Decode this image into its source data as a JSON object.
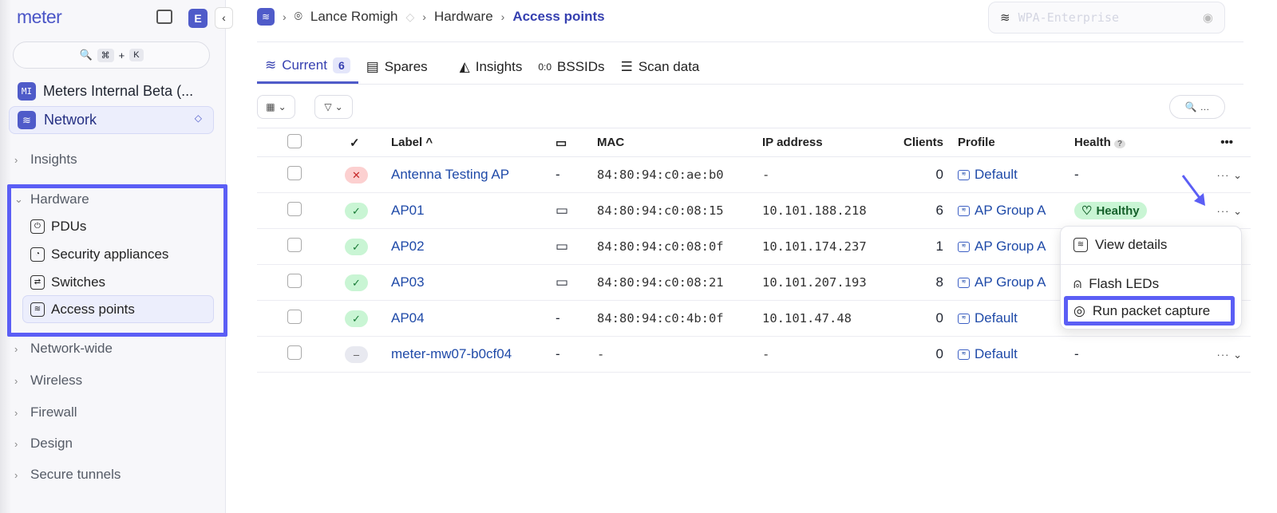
{
  "app": {
    "logo": "meter",
    "avatar": "E",
    "collapse": "‹"
  },
  "search": {
    "kbd_cmd": "⌘",
    "plus": "+",
    "kbd_k": "K"
  },
  "org": {
    "initials": "MI",
    "name": "Meters Internal Beta (..."
  },
  "network_selector": {
    "label": "Network"
  },
  "nav": {
    "sections": [
      "Insights",
      "Hardware",
      "Network-wide",
      "Wireless",
      "Firewall",
      "Design",
      "Secure tunnels"
    ],
    "hardware_items": [
      "PDUs",
      "Security appliances",
      "Switches",
      "Access points"
    ]
  },
  "breadcrumb": [
    "Lance Romigh",
    "Hardware",
    "Access points"
  ],
  "ssid": {
    "value": "WPA-Enterprise"
  },
  "tabs": [
    {
      "label": "Current",
      "count": "6"
    },
    {
      "label": "Spares"
    },
    {
      "label": "Insights"
    },
    {
      "label": "BSSIDs"
    },
    {
      "label": "Scan data"
    }
  ],
  "table": {
    "headers": {
      "label": "Label ^",
      "mac": "MAC",
      "ip": "IP address",
      "clients": "Clients",
      "profile": "Profile",
      "health": "Health",
      "help": "?",
      "more": "•••"
    },
    "rows": [
      {
        "status": "error",
        "status_glyph": "✕",
        "label": "Antenna Testing AP",
        "note": "-",
        "mac": "84:80:94:c0:ae:b0",
        "ip": "-",
        "clients": "0",
        "profile": "Default",
        "health": "-"
      },
      {
        "status": "ok",
        "status_glyph": "✓",
        "label": "AP01",
        "note": "",
        "mac": "84:80:94:c0:08:15",
        "ip": "10.101.188.218",
        "clients": "6",
        "profile": "AP Group A",
        "health": "Healthy"
      },
      {
        "status": "ok",
        "status_glyph": "✓",
        "label": "AP02",
        "note": "",
        "mac": "84:80:94:c0:08:0f",
        "ip": "10.101.174.237",
        "clients": "1",
        "profile": "AP Group A",
        "health": ""
      },
      {
        "status": "ok",
        "status_glyph": "✓",
        "label": "AP03",
        "note": "",
        "mac": "84:80:94:c0:08:21",
        "ip": "10.101.207.193",
        "clients": "8",
        "profile": "AP Group A",
        "health": ""
      },
      {
        "status": "ok",
        "status_glyph": "✓",
        "label": "AP04",
        "note": "-",
        "mac": "84:80:94:c0:4b:0f",
        "ip": "10.101.47.48",
        "clients": "0",
        "profile": "Default",
        "health": ""
      },
      {
        "status": "offline",
        "status_glyph": "–",
        "label": "meter-mw07-b0cf04",
        "note": "-",
        "mac": "-",
        "ip": "-",
        "clients": "0",
        "profile": "Default",
        "health": "-"
      }
    ]
  },
  "row_menu": {
    "items": [
      "View details",
      "Flash LEDs",
      "Run packet capture"
    ]
  },
  "colors": {
    "accent": "#4f5bc9",
    "highlight": "#5b5ef5",
    "healthy": "#c9f5d4",
    "link": "#1f4aa8"
  }
}
